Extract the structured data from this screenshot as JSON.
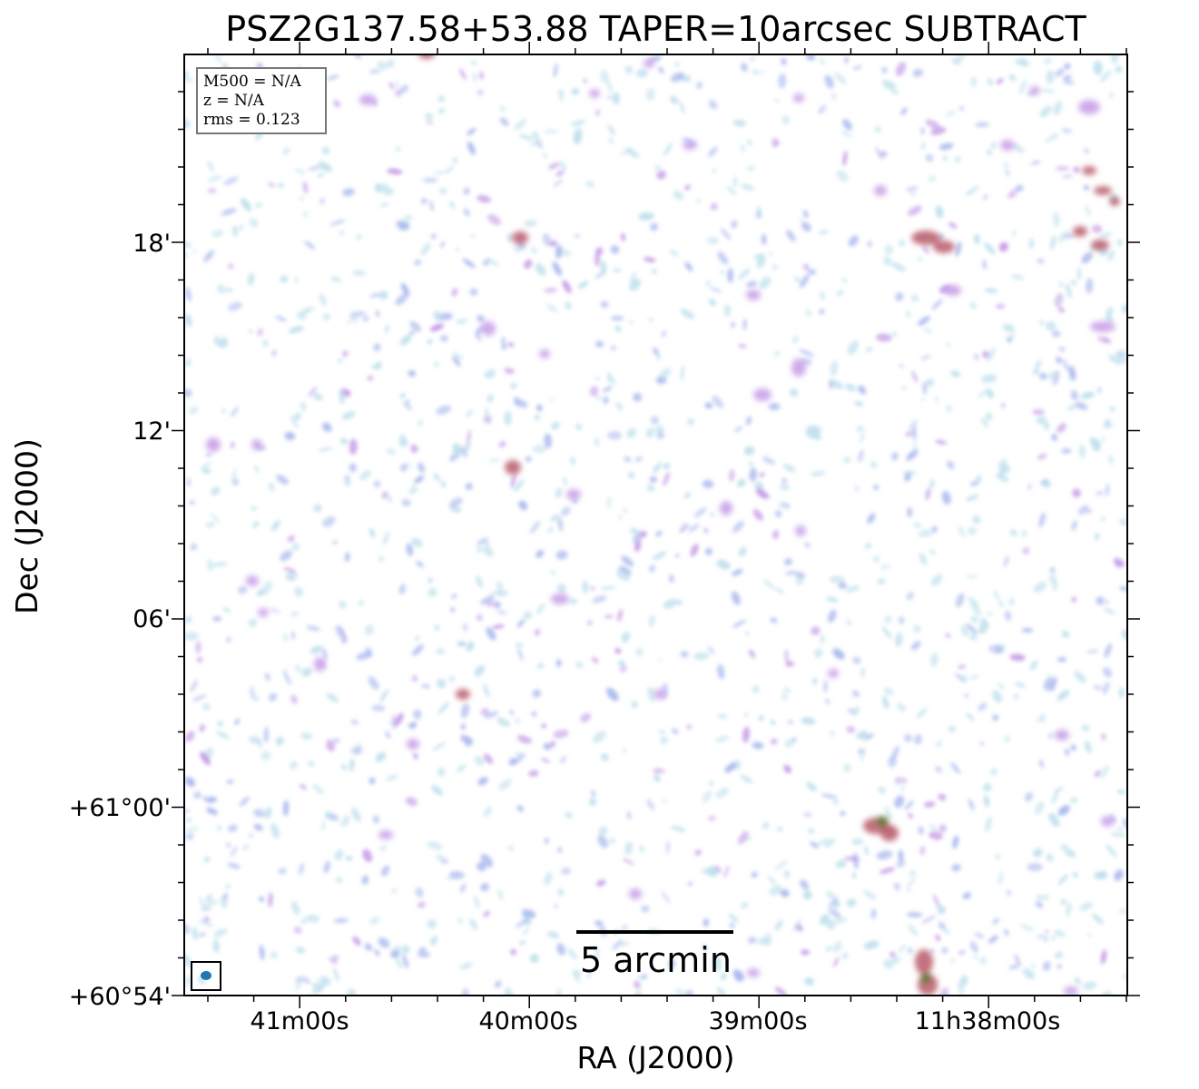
{
  "title": "PSZ2G137.58+53.88 TAPER=10arcsec SUBTRACT",
  "axes": {
    "xlabel": "RA (J2000)",
    "ylabel": "Dec (J2000)",
    "x_ticks": [
      "41m00s",
      "40m00s",
      "39m00s",
      "11h38m00s"
    ],
    "y_ticks": [
      "18'",
      "12'",
      "06'",
      "+61°00'",
      "+60°54'"
    ]
  },
  "info_box": {
    "m500": "M500 = N/A",
    "z": "z = N/A",
    "rms": "rms = 0.123"
  },
  "scale_bar": {
    "label": "5 arcmin",
    "length_arcmin": 5
  },
  "colors": {
    "noise_light": "#bfe0ec",
    "noise_blue": "#a9b8ee",
    "noise_purple": "#c59be6",
    "emission_red": "#b85a6a",
    "emission_core": "#5f7a3a",
    "beam": "#1f77b4",
    "frame": "#000000",
    "infobox_border": "#777777"
  }
}
